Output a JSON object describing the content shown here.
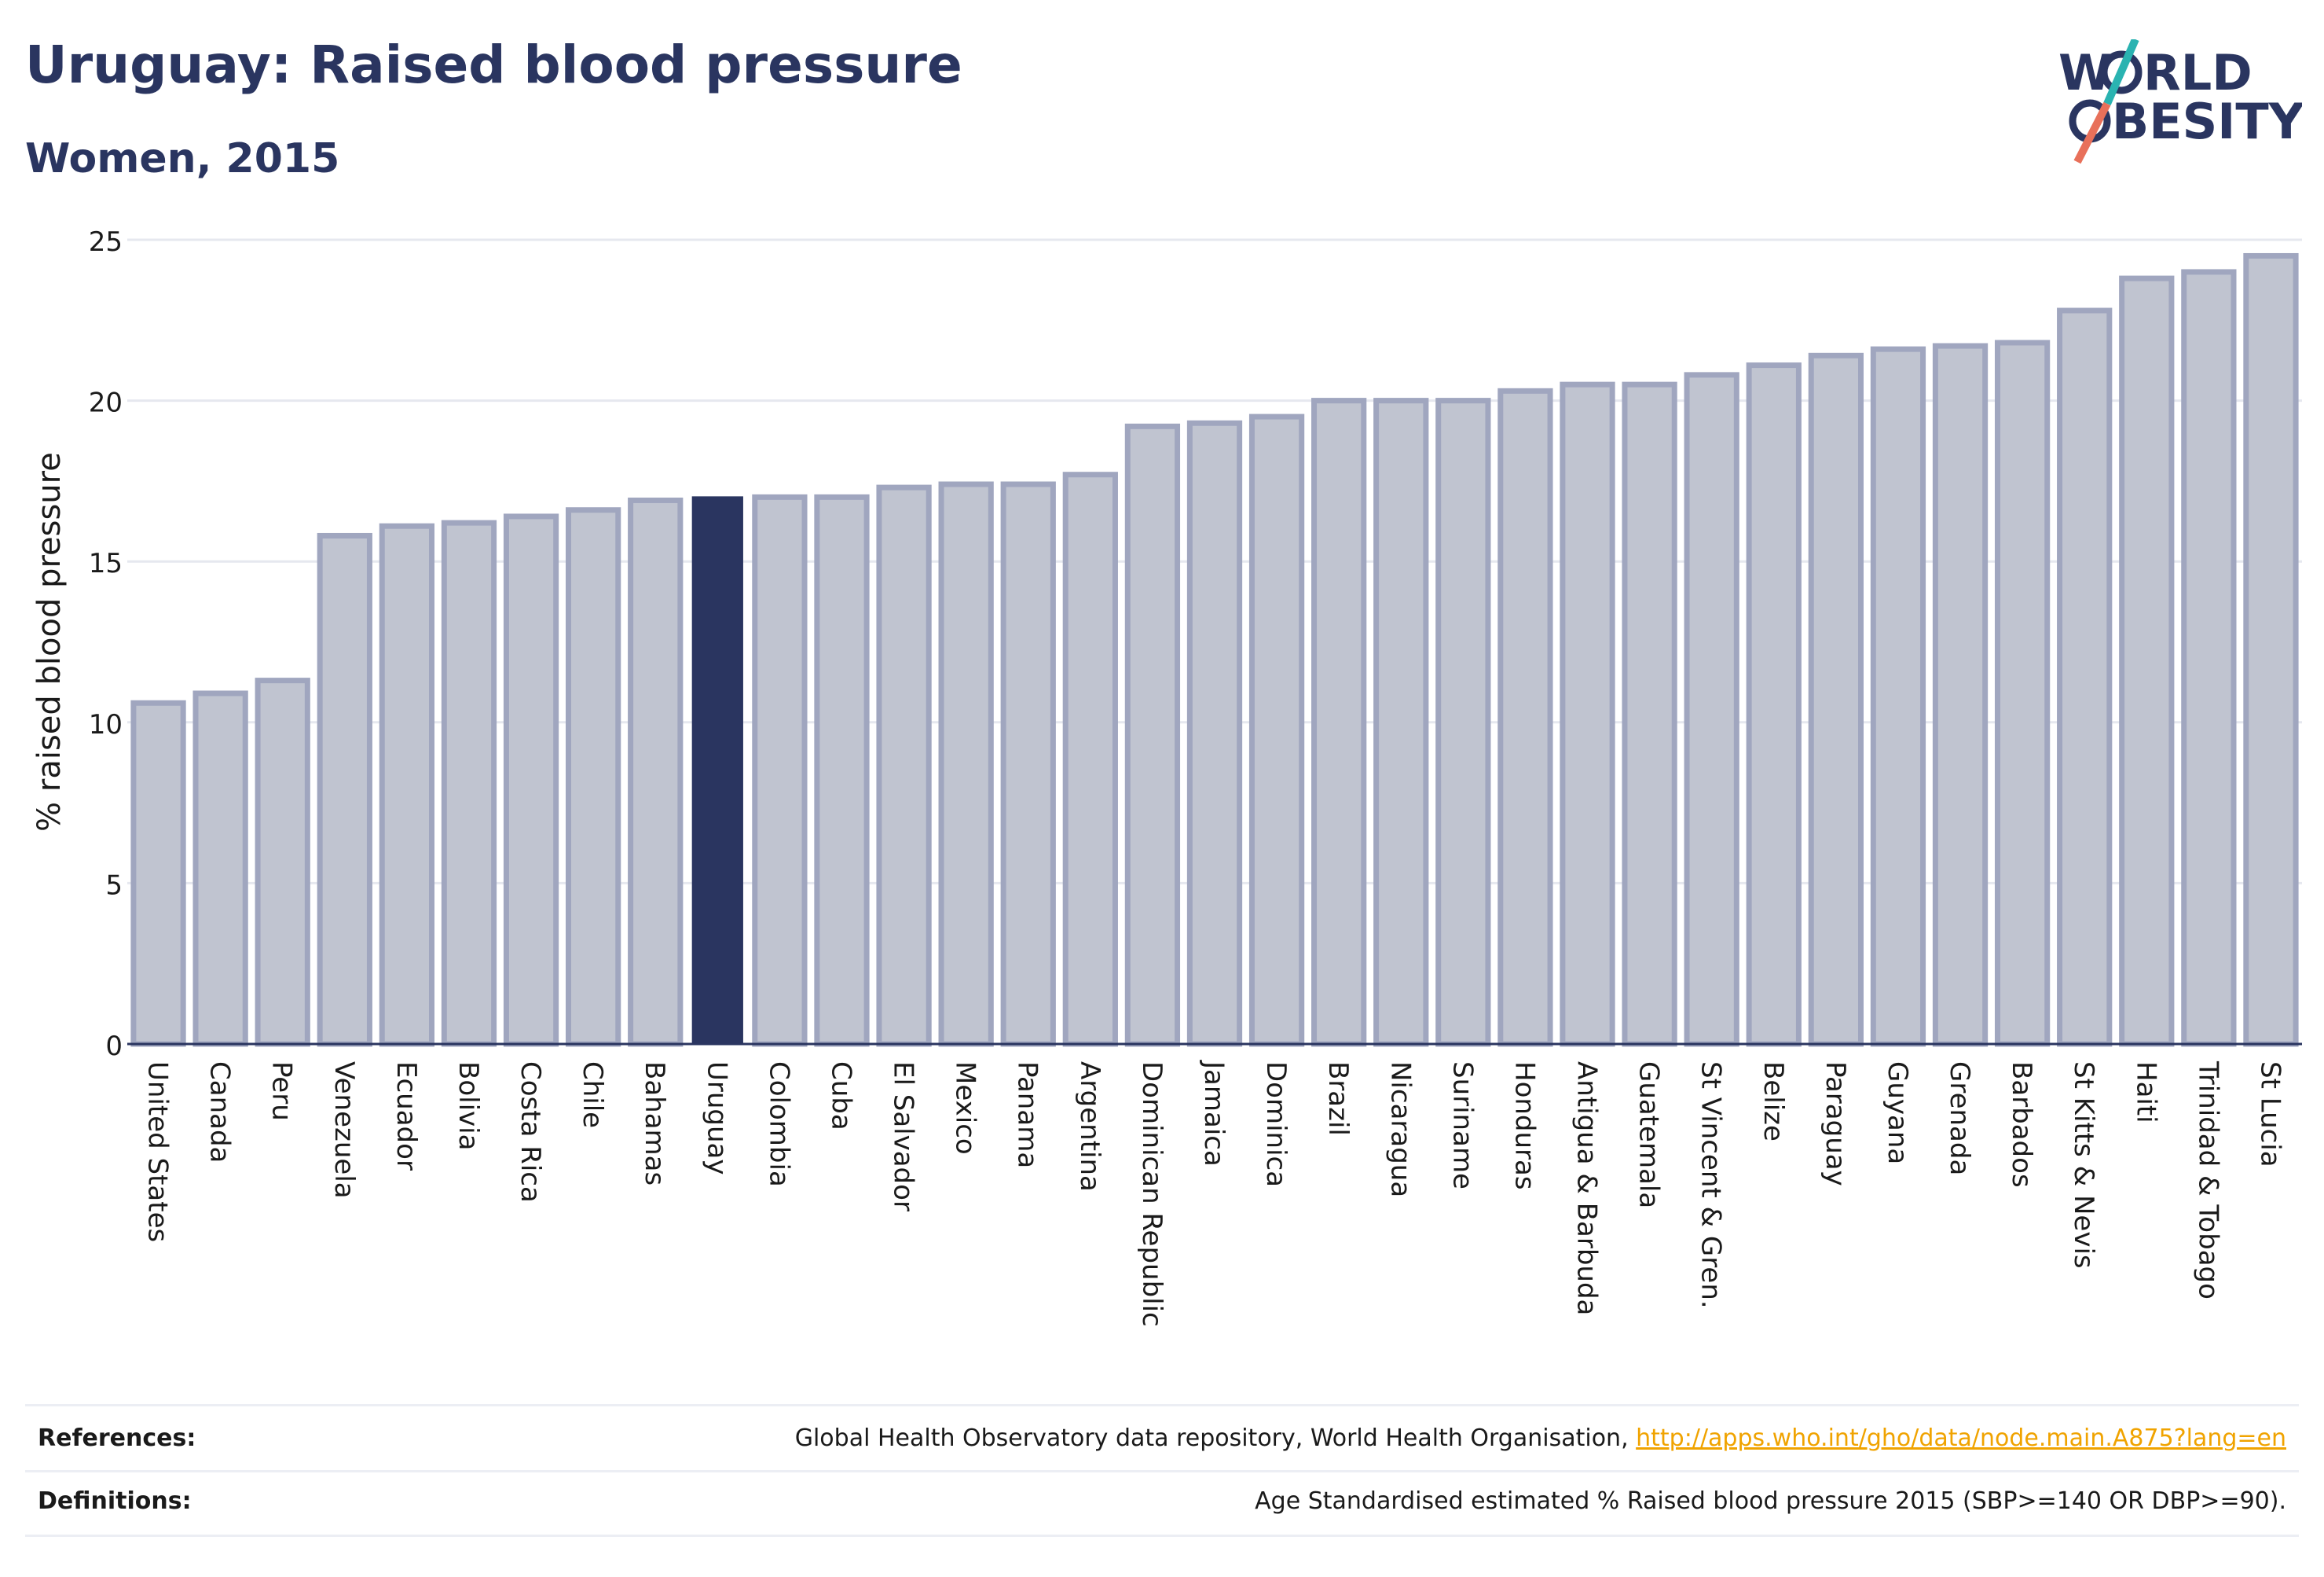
{
  "header": {
    "title": "Uruguay: Raised blood pressure",
    "subtitle": "Women, 2015"
  },
  "logo": {
    "line1_a": "W",
    "line1_b": "RLD",
    "line2_b": "BESITY",
    "text": "WORLD OBESITY",
    "colors": {
      "navy": "#2a3560",
      "teal": "#2ab3b1",
      "coral": "#e8705a"
    }
  },
  "chart_data": {
    "type": "bar",
    "ylabel": "% raised blood pressure",
    "ylim": [
      0,
      25
    ],
    "yticks": [
      0,
      5,
      10,
      15,
      20,
      25
    ],
    "grid": true,
    "highlight": "Uruguay",
    "colors": {
      "bar": "#c0c4d0",
      "bar_edge": "#a0a6bf",
      "highlight": "#2a3560"
    },
    "categories": [
      "United States",
      "Canada",
      "Peru",
      "Venezuela",
      "Ecuador",
      "Bolivia",
      "Costa Rica",
      "Chile",
      "Bahamas",
      "Uruguay",
      "Colombia",
      "Cuba",
      "El Salvador",
      "Mexico",
      "Panama",
      "Argentina",
      "Dominican Republic",
      "Jamaica",
      "Dominica",
      "Brazil",
      "Nicaragua",
      "Suriname",
      "Honduras",
      "Antigua & Barbuda",
      "Guatemala",
      "St Vincent & Gren.",
      "Belize",
      "Paraguay",
      "Guyana",
      "Grenada",
      "Barbados",
      "St Kitts & Nevis",
      "Haiti",
      "Trinidad & Tobago",
      "St Lucia"
    ],
    "values": [
      10.6,
      10.9,
      11.3,
      15.8,
      16.1,
      16.2,
      16.4,
      16.6,
      16.9,
      17.0,
      17.0,
      17.0,
      17.3,
      17.4,
      17.4,
      17.7,
      19.2,
      19.3,
      19.5,
      20.0,
      20.0,
      20.0,
      20.3,
      20.5,
      20.5,
      20.8,
      21.1,
      21.4,
      21.6,
      21.7,
      21.8,
      22.8,
      23.8,
      24.0,
      24.5
    ]
  },
  "footer": {
    "references_label": "References:",
    "references_text": "Global Health Observatory data repository, World Health Organisation, ",
    "references_link": "http://apps.who.int/gho/data/node.main.A875?lang=en",
    "definitions_label": "Definitions:",
    "definitions_text": "Age Standardised estimated % Raised blood pressure 2015 (SBP>=140 OR DBP>=90)."
  }
}
